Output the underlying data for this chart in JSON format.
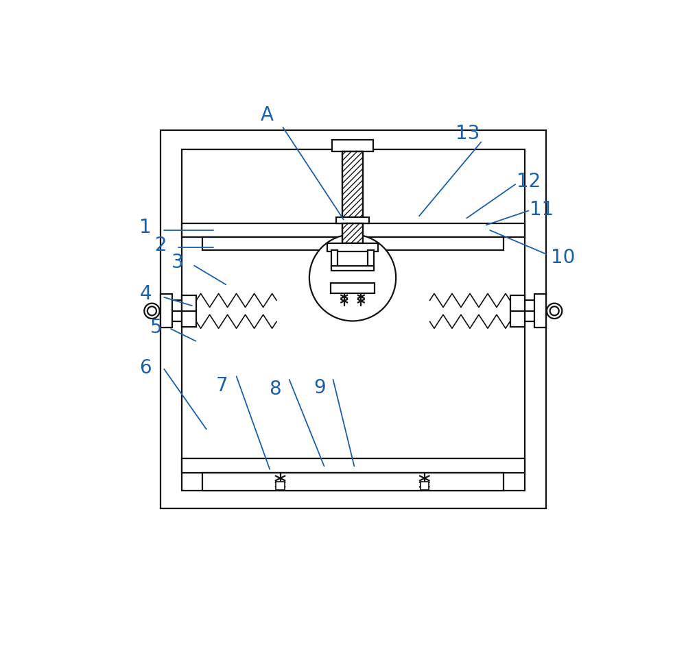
{
  "bg_color": "#ffffff",
  "line_color": "#111111",
  "label_color": "#1a5fa8",
  "lw": 1.6,
  "lw_thin": 1.2,
  "label_fontsize": 20,
  "fig_w": 10.0,
  "fig_h": 9.54,
  "labels": [
    [
      "A",
      3.4,
      8.85
    ],
    [
      "1",
      1.1,
      6.72
    ],
    [
      "2",
      1.4,
      6.38
    ],
    [
      "3",
      1.7,
      6.05
    ],
    [
      "4",
      1.1,
      5.45
    ],
    [
      "5",
      1.3,
      4.82
    ],
    [
      "6",
      1.1,
      4.05
    ],
    [
      "7",
      2.55,
      3.72
    ],
    [
      "8",
      3.55,
      3.65
    ],
    [
      "9",
      4.4,
      3.68
    ],
    [
      "10",
      9.0,
      6.15
    ],
    [
      "11",
      8.6,
      7.05
    ],
    [
      "12",
      8.35,
      7.58
    ],
    [
      "13",
      7.2,
      8.5
    ]
  ],
  "leader_lines": [
    [
      "A",
      3.7,
      8.6,
      4.85,
      6.85
    ],
    [
      "1",
      1.45,
      6.65,
      2.38,
      6.65
    ],
    [
      "2",
      1.72,
      6.33,
      2.38,
      6.33
    ],
    [
      "3",
      2.02,
      5.98,
      2.62,
      5.62
    ],
    [
      "4",
      1.45,
      5.38,
      1.98,
      5.22
    ],
    [
      "5",
      1.58,
      4.78,
      2.05,
      4.55
    ],
    [
      "6",
      1.45,
      4.02,
      2.25,
      2.88
    ],
    [
      "7",
      2.82,
      3.88,
      3.45,
      2.12
    ],
    [
      "8",
      3.82,
      3.82,
      4.48,
      2.18
    ],
    [
      "9",
      4.65,
      3.82,
      5.05,
      2.18
    ],
    [
      "10",
      8.68,
      6.2,
      7.62,
      6.65
    ],
    [
      "11",
      8.35,
      7.02,
      7.55,
      6.75
    ],
    [
      "12",
      8.1,
      7.52,
      7.18,
      6.88
    ],
    [
      "13",
      7.45,
      8.32,
      6.28,
      6.92
    ]
  ]
}
